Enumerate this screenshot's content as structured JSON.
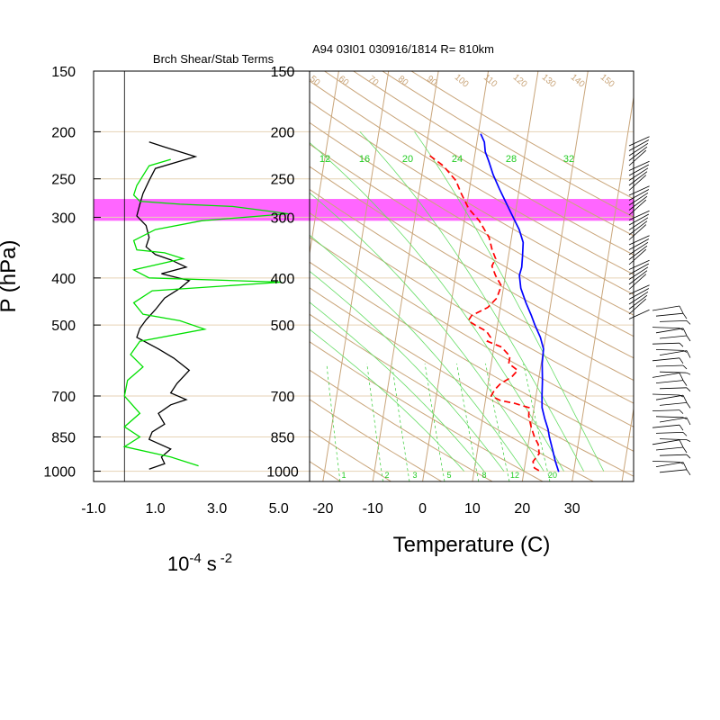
{
  "chart_data": [
    {
      "type": "line",
      "title": "Brch Shear/Stab Terms",
      "xlabel": "10-4 s -2",
      "xlabel_base": "10",
      "xlabel_exp1": "-4",
      "xlabel_unit": "s",
      "xlabel_exp2": "-2",
      "ylabel": "P (hPa)",
      "y_scale": "log",
      "xlim": [
        -1.0,
        6.0
      ],
      "ylim": [
        1050,
        150
      ],
      "x_ticks": [
        "-1.0",
        "1.0",
        "3.0",
        "5.0"
      ],
      "x_tick_values": [
        -1,
        1,
        3,
        5
      ],
      "y_ticks": [
        "150",
        "200",
        "250",
        "300",
        "400",
        "500",
        "700",
        "850",
        "1000"
      ],
      "y_tick_values": [
        150,
        200,
        250,
        300,
        400,
        500,
        700,
        850,
        1000
      ],
      "highlight_band_hpa": [
        275,
        305
      ],
      "series": [
        {
          "color": "#000000",
          "points": [
            [
              0.8,
              210
            ],
            [
              1.3,
              215
            ],
            [
              2.3,
              225
            ],
            [
              1.0,
              238
            ],
            [
              0.8,
              252
            ],
            [
              0.6,
              268
            ],
            [
              0.5,
              282
            ],
            [
              0.4,
              298
            ],
            [
              0.7,
              312
            ],
            [
              0.8,
              330
            ],
            [
              0.7,
              345
            ],
            [
              1.0,
              358
            ],
            [
              1.5,
              367
            ],
            [
              2.0,
              380
            ],
            [
              1.2,
              392
            ],
            [
              2.1,
              405
            ],
            [
              1.8,
              420
            ],
            [
              1.3,
              440
            ],
            [
              1.0,
              465
            ],
            [
              0.7,
              488
            ],
            [
              0.5,
              508
            ],
            [
              0.4,
              530
            ],
            [
              1.1,
              560
            ],
            [
              1.6,
              585
            ],
            [
              2.1,
              620
            ],
            [
              1.7,
              660
            ],
            [
              1.5,
              690
            ],
            [
              2.0,
              712
            ],
            [
              1.5,
              730
            ],
            [
              1.1,
              760
            ],
            [
              1.3,
              800
            ],
            [
              0.9,
              830
            ],
            [
              0.8,
              860
            ],
            [
              1.5,
              900
            ],
            [
              1.2,
              935
            ],
            [
              1.3,
              965
            ],
            [
              0.8,
              990
            ]
          ]
        },
        {
          "color": "#00e000",
          "points": [
            [
              1.5,
              228
            ],
            [
              0.8,
              235
            ],
            [
              0.4,
              258
            ],
            [
              0.3,
              270
            ],
            [
              0.5,
              278
            ],
            [
              1.8,
              282
            ],
            [
              3.5,
              285
            ],
            [
              4.8,
              292
            ],
            [
              5.3,
              295
            ],
            [
              2.5,
              305
            ],
            [
              1.0,
              318
            ],
            [
              0.3,
              335
            ],
            [
              0.4,
              350
            ],
            [
              1.3,
              355
            ],
            [
              1.9,
              365
            ],
            [
              0.3,
              385
            ],
            [
              0.8,
              400
            ],
            [
              5.1,
              408
            ],
            [
              0.9,
              425
            ],
            [
              0.3,
              450
            ],
            [
              0.6,
              475
            ],
            [
              1.8,
              490
            ],
            [
              2.6,
              510
            ],
            [
              0.5,
              540
            ],
            [
              0.2,
              575
            ],
            [
              0.6,
              610
            ],
            [
              0.1,
              650
            ],
            [
              0.0,
              700
            ],
            [
              0.5,
              760
            ],
            [
              0.0,
              810
            ],
            [
              0.5,
              850
            ],
            [
              0.0,
              890
            ],
            [
              1.5,
              935
            ],
            [
              2.4,
              975
            ]
          ]
        }
      ]
    },
    {
      "type": "line",
      "title": "A94 03I01 030916/1814 R= 810km",
      "xlabel": "Temperature (C)",
      "ylabel": "",
      "y_scale": "log",
      "xlim": [
        -23,
        42
      ],
      "ylim": [
        1050,
        150
      ],
      "x_ticks": [
        "-20",
        "-10",
        "0",
        "10",
        "20",
        "30"
      ],
      "x_tick_values": [
        -20,
        -10,
        0,
        10,
        20,
        30
      ],
      "y_ticks": [
        "150",
        "200",
        "250",
        "300",
        "400",
        "500",
        "700",
        "850",
        "1000"
      ],
      "y_tick_values": [
        150,
        200,
        250,
        300,
        400,
        500,
        700,
        850,
        1000
      ],
      "highlight_band_hpa": [
        275,
        305
      ],
      "isotherm_values": [
        -100,
        -90,
        -80,
        -70,
        -60,
        -50,
        -40,
        -30,
        -20,
        -10,
        0,
        10,
        20,
        30,
        40
      ],
      "dry_adiabat_labels": [
        "50",
        "60",
        "70",
        "80",
        "90",
        "100",
        "110",
        "120",
        "130",
        "140",
        "150"
      ],
      "dry_adiabat_theta_c": [
        -40,
        -30,
        -20,
        -10,
        0,
        10,
        20,
        30,
        40,
        50,
        60,
        70,
        80,
        90,
        100,
        110,
        120,
        130,
        140,
        150,
        160,
        170
      ],
      "moist_adiabat_labels": [
        "12",
        "16",
        "20",
        "24",
        "28",
        "32"
      ],
      "mixing_ratio_labels": [
        "1",
        "2",
        "3",
        "5",
        "8",
        "12",
        "20"
      ],
      "mixing_ratio_g_per_kg": [
        1,
        2,
        3,
        5,
        8,
        12,
        20
      ],
      "series": [
        {
          "name": "temperature",
          "color": "#0000ff",
          "style": "solid",
          "points": [
            [
              0.5,
              202
            ],
            [
              1.5,
              210
            ],
            [
              2.0,
              220
            ],
            [
              3.0,
              230
            ],
            [
              4.3,
              245
            ],
            [
              6.0,
              262
            ],
            [
              7.8,
              280
            ],
            [
              9.5,
              298
            ],
            [
              11.3,
              318
            ],
            [
              12.5,
              338
            ],
            [
              12.8,
              360
            ],
            [
              13.0,
              380
            ],
            [
              12.8,
              395
            ],
            [
              13.5,
              420
            ],
            [
              15.0,
              450
            ],
            [
              16.5,
              478
            ],
            [
              17.5,
              500
            ],
            [
              19.0,
              530
            ],
            [
              20.0,
              560
            ],
            [
              20.2,
              600
            ],
            [
              20.8,
              650
            ],
            [
              21.2,
              700
            ],
            [
              21.6,
              740
            ],
            [
              22.5,
              780
            ],
            [
              23.5,
              820
            ],
            [
              24.0,
              850
            ],
            [
              25.0,
              900
            ],
            [
              26.0,
              955
            ],
            [
              27.0,
              1003
            ]
          ]
        },
        {
          "name": "dewpoint",
          "color": "#ff0000",
          "style": "dashed",
          "points": [
            [
              -9.0,
              224
            ],
            [
              -6.0,
              235
            ],
            [
              -3.0,
              252
            ],
            [
              -1.5,
              268
            ],
            [
              0.5,
              288
            ],
            [
              3.0,
              305
            ],
            [
              5.5,
              330
            ],
            [
              6.5,
              350
            ],
            [
              7.5,
              365
            ],
            [
              7.0,
              378
            ],
            [
              8.0,
              395
            ],
            [
              9.5,
              415
            ],
            [
              9.0,
              440
            ],
            [
              7.5,
              460
            ],
            [
              4.5,
              478
            ],
            [
              4.0,
              490
            ],
            [
              5.5,
              500
            ],
            [
              8.0,
              515
            ],
            [
              9.0,
              530
            ],
            [
              8.5,
              540
            ],
            [
              11.5,
              555
            ],
            [
              13.5,
              580
            ],
            [
              13.5,
              600
            ],
            [
              15.5,
              620
            ],
            [
              14.5,
              640
            ],
            [
              12.5,
              660
            ],
            [
              11.5,
              680
            ],
            [
              11.0,
              700
            ],
            [
              13.0,
              715
            ],
            [
              16.0,
              725
            ],
            [
              19.0,
              740
            ],
            [
              19.2,
              770
            ],
            [
              20.0,
              810
            ],
            [
              21.0,
              850
            ],
            [
              22.0,
              880
            ],
            [
              22.5,
              920
            ],
            [
              21.5,
              955
            ],
            [
              22.0,
              985
            ],
            [
              23.5,
              1003
            ]
          ]
        }
      ]
    }
  ]
}
